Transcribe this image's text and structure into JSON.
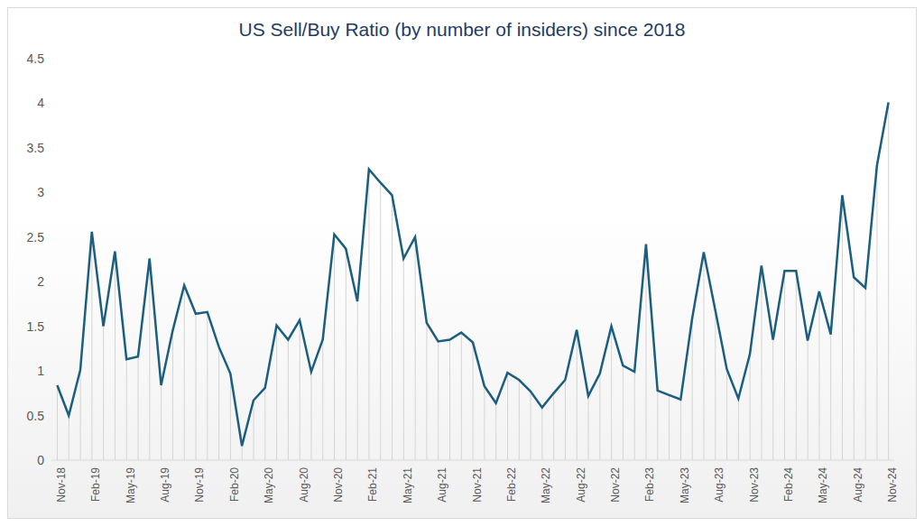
{
  "chart_data": {
    "type": "line",
    "title": "US Sell/Buy Ratio (by number of insiders) since 2018",
    "categories": [
      "Nov-18",
      null,
      null,
      "Feb-19",
      null,
      null,
      "May-19",
      null,
      null,
      "Aug-19",
      null,
      null,
      "Nov-19",
      null,
      null,
      "Feb-20",
      null,
      null,
      "May-20",
      null,
      null,
      "Aug-20",
      null,
      null,
      "Nov-20",
      null,
      null,
      "Feb-21",
      null,
      null,
      "May-21",
      null,
      null,
      "Aug-21",
      null,
      null,
      "Nov-21",
      null,
      null,
      "Feb-22",
      null,
      null,
      "May-22",
      null,
      null,
      "Aug-22",
      null,
      null,
      "Nov-22",
      null,
      null,
      "Feb-23",
      null,
      null,
      "May-23",
      null,
      null,
      "Aug-23",
      null,
      null,
      "Nov-23",
      null,
      null,
      "Feb-24",
      null,
      null,
      "May-24",
      null,
      null,
      "Aug-24",
      null,
      null,
      "Nov-24"
    ],
    "values": [
      0.84,
      0.5,
      1.01,
      2.56,
      1.5,
      2.34,
      1.13,
      1.16,
      2.26,
      0.84,
      1.45,
      1.96,
      1.64,
      1.66,
      1.27,
      0.97,
      0.16,
      0.67,
      0.81,
      1.51,
      1.35,
      1.57,
      0.99,
      1.35,
      2.53,
      2.37,
      1.78,
      3.26,
      3.11,
      2.97,
      2.26,
      2.5,
      1.54,
      1.33,
      1.35,
      1.43,
      1.32,
      0.83,
      0.64,
      0.98,
      0.9,
      0.77,
      0.59,
      0.75,
      0.9,
      1.46,
      0.72,
      0.97,
      1.5,
      1.06,
      0.99,
      2.42,
      0.78,
      0.73,
      0.68,
      1.59,
      2.33,
      1.68,
      1.02,
      0.69,
      1.19,
      2.18,
      1.35,
      2.12,
      2.12,
      1.34,
      1.89,
      1.41,
      2.97,
      2.05,
      1.93,
      3.3,
      4.01
    ],
    "color": "#1b5e7e",
    "ylim": [
      0,
      4.5
    ],
    "yticks": [
      0,
      0.5,
      1,
      1.5,
      2,
      2.5,
      3,
      3.5,
      4,
      4.5
    ],
    "grid": false
  }
}
